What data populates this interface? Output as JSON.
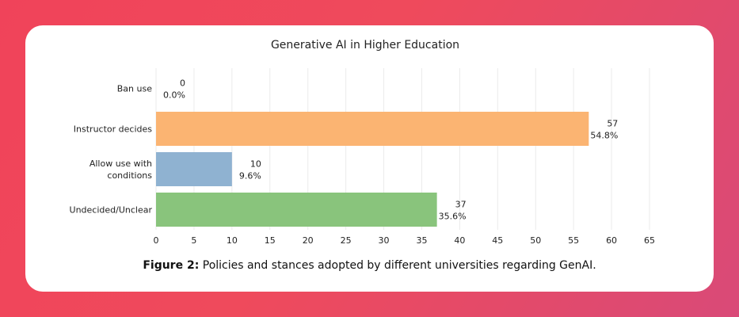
{
  "chart_data": {
    "type": "bar",
    "orientation": "horizontal",
    "title": "Generative AI in Higher Education",
    "categories": [
      "Ban use",
      "Instructor decides",
      "Allow use with conditions",
      "Undecided/Unclear"
    ],
    "category_lines": [
      [
        "Ban use"
      ],
      [
        "Instructor decides"
      ],
      [
        "Allow use with",
        "conditions"
      ],
      [
        "Undecided/Unclear"
      ]
    ],
    "values": [
      0,
      57,
      10,
      37
    ],
    "percent_labels": [
      "0.0%",
      "54.8%",
      "9.6%",
      "35.6%"
    ],
    "colors": [
      "#f58518",
      "#fbb472",
      "#8fb2d1",
      "#89c47c"
    ],
    "xlim": [
      0,
      65
    ],
    "xticks": [
      0,
      5,
      10,
      15,
      20,
      25,
      30,
      35,
      40,
      45,
      50,
      55,
      60,
      65
    ],
    "xlabel": "",
    "ylabel": "",
    "grid": true,
    "legend": "none"
  },
  "caption": {
    "label": "Figure 2:",
    "text": " Policies and stances adopted by different universities regarding GenAI."
  }
}
